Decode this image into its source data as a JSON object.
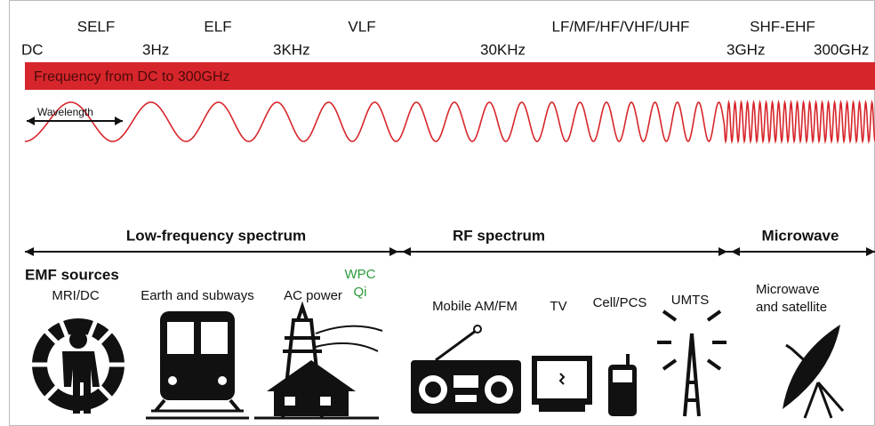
{
  "bands": [
    "SELF",
    "ELF",
    "VLF",
    "LF/MF/HF/VHF/UHF",
    "SHF-EHF"
  ],
  "frequencies": [
    "DC",
    "3Hz",
    "3KHz",
    "30KHz",
    "3GHz",
    "300GHz"
  ],
  "bar_label": "Frequency from DC to 300GHz",
  "wavelength_label": "Wavelength",
  "spectra": [
    "Low-frequency spectrum",
    "RF spectrum",
    "Microwave"
  ],
  "sources_heading": "EMF sources",
  "sources": [
    "MRI/DC",
    "Earth and subways",
    "AC power",
    "WPC",
    "Qi",
    "Mobile AM/FM",
    "TV",
    "Cell/PCS",
    "UMTS",
    "Microwave",
    "and satellite"
  ]
}
